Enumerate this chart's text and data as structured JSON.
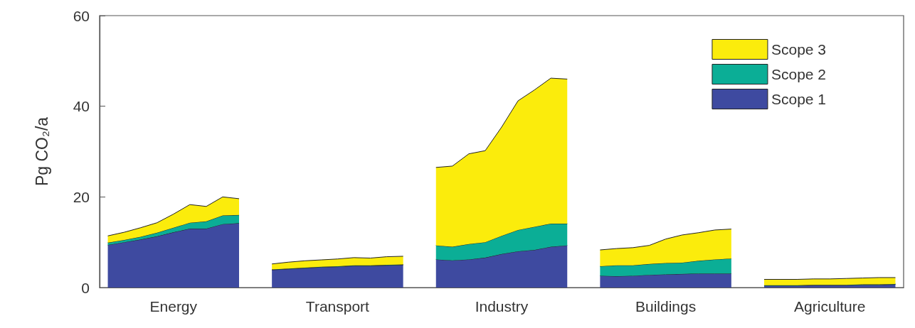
{
  "chart_data": {
    "type": "area",
    "stacked": true,
    "ylabel": "Pg CO₂/a",
    "categories": [
      null,
      null,
      null,
      null,
      "Energy",
      null,
      null,
      null,
      null,
      null,
      null,
      null,
      null,
      null,
      "Transport",
      null,
      null,
      null,
      null,
      null,
      null,
      null,
      null,
      null,
      "Industry",
      null,
      null,
      null,
      null,
      null,
      null,
      null,
      null,
      null,
      "Buildings",
      null,
      null,
      null,
      null,
      null,
      null,
      null,
      null,
      null,
      "Agriculture",
      null,
      null,
      null,
      null
    ],
    "series": [
      {
        "name": "Scope 1",
        "color": "#3e4aa0",
        "values": [
          9.4,
          10.0,
          10.6,
          11.3,
          12.2,
          13.0,
          13.0,
          14.0,
          14.2,
          null,
          3.9,
          4.1,
          4.3,
          4.5,
          4.6,
          4.8,
          4.8,
          4.9,
          5.0,
          null,
          6.2,
          6.0,
          6.2,
          6.6,
          7.4,
          8.0,
          8.3,
          9.0,
          9.3,
          null,
          2.6,
          2.5,
          2.6,
          2.8,
          2.9,
          3.0,
          3.1,
          3.1,
          3.1,
          null,
          0.4,
          0.4,
          0.4,
          0.5,
          0.5,
          0.5,
          0.6,
          0.6,
          0.7
        ]
      },
      {
        "name": "Scope 2",
        "color": "#0bae96",
        "values": [
          0.5,
          0.5,
          0.6,
          0.8,
          1.0,
          1.3,
          1.6,
          1.9,
          1.8,
          null,
          0.1,
          0.1,
          0.1,
          0.1,
          0.1,
          0.1,
          0.1,
          0.1,
          0.1,
          null,
          3.1,
          3.0,
          3.4,
          3.4,
          4.0,
          4.7,
          5.1,
          5.1,
          4.8,
          null,
          2.1,
          2.4,
          2.3,
          2.4,
          2.5,
          2.5,
          2.8,
          3.1,
          3.3,
          null,
          0.1,
          0.1,
          0.1,
          0.1,
          0.1,
          0.1,
          0.1,
          0.1,
          0.1
        ]
      },
      {
        "name": "Scope 3",
        "color": "#fbec0c",
        "values": [
          1.5,
          1.7,
          2.0,
          2.2,
          3.0,
          4.0,
          3.3,
          4.1,
          3.6,
          null,
          1.2,
          1.4,
          1.5,
          1.5,
          1.6,
          1.7,
          1.6,
          1.8,
          1.8,
          null,
          17.2,
          17.8,
          19.9,
          20.2,
          24.0,
          28.5,
          30.2,
          32.1,
          31.9,
          null,
          3.6,
          3.7,
          3.9,
          4.1,
          5.3,
          6.1,
          6.2,
          6.5,
          6.5,
          null,
          1.3,
          1.3,
          1.3,
          1.3,
          1.3,
          1.4,
          1.4,
          1.5,
          1.4
        ]
      }
    ],
    "ylim": [
      0,
      60
    ],
    "yticks": [
      0,
      20,
      40,
      60
    ],
    "legend": "top right",
    "grid": false
  }
}
